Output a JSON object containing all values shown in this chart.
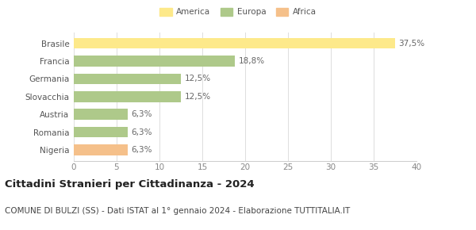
{
  "categories": [
    "Nigeria",
    "Romania",
    "Austria",
    "Slovacchia",
    "Germania",
    "Francia",
    "Brasile"
  ],
  "values": [
    6.3,
    6.3,
    6.3,
    12.5,
    12.5,
    18.8,
    37.5
  ],
  "colors": [
    "#f5c08a",
    "#aec98a",
    "#aec98a",
    "#aec98a",
    "#aec98a",
    "#aec98a",
    "#fde98a"
  ],
  "labels": [
    "6,3%",
    "6,3%",
    "6,3%",
    "12,5%",
    "12,5%",
    "18,8%",
    "37,5%"
  ],
  "legend": [
    {
      "label": "America",
      "color": "#fde98a"
    },
    {
      "label": "Europa",
      "color": "#aec98a"
    },
    {
      "label": "Africa",
      "color": "#f5c08a"
    }
  ],
  "xlim": [
    0,
    40
  ],
  "xticks": [
    0,
    5,
    10,
    15,
    20,
    25,
    30,
    35,
    40
  ],
  "title": "Cittadini Stranieri per Cittadinanza - 2024",
  "subtitle": "COMUNE DI BULZI (SS) - Dati ISTAT al 1° gennaio 2024 - Elaborazione TUTTITALIA.IT",
  "bg_color": "#ffffff",
  "bar_height": 0.6,
  "label_fontsize": 7.5,
  "title_fontsize": 9.5,
  "subtitle_fontsize": 7.5,
  "tick_fontsize": 7.5,
  "ytick_fontsize": 7.5
}
